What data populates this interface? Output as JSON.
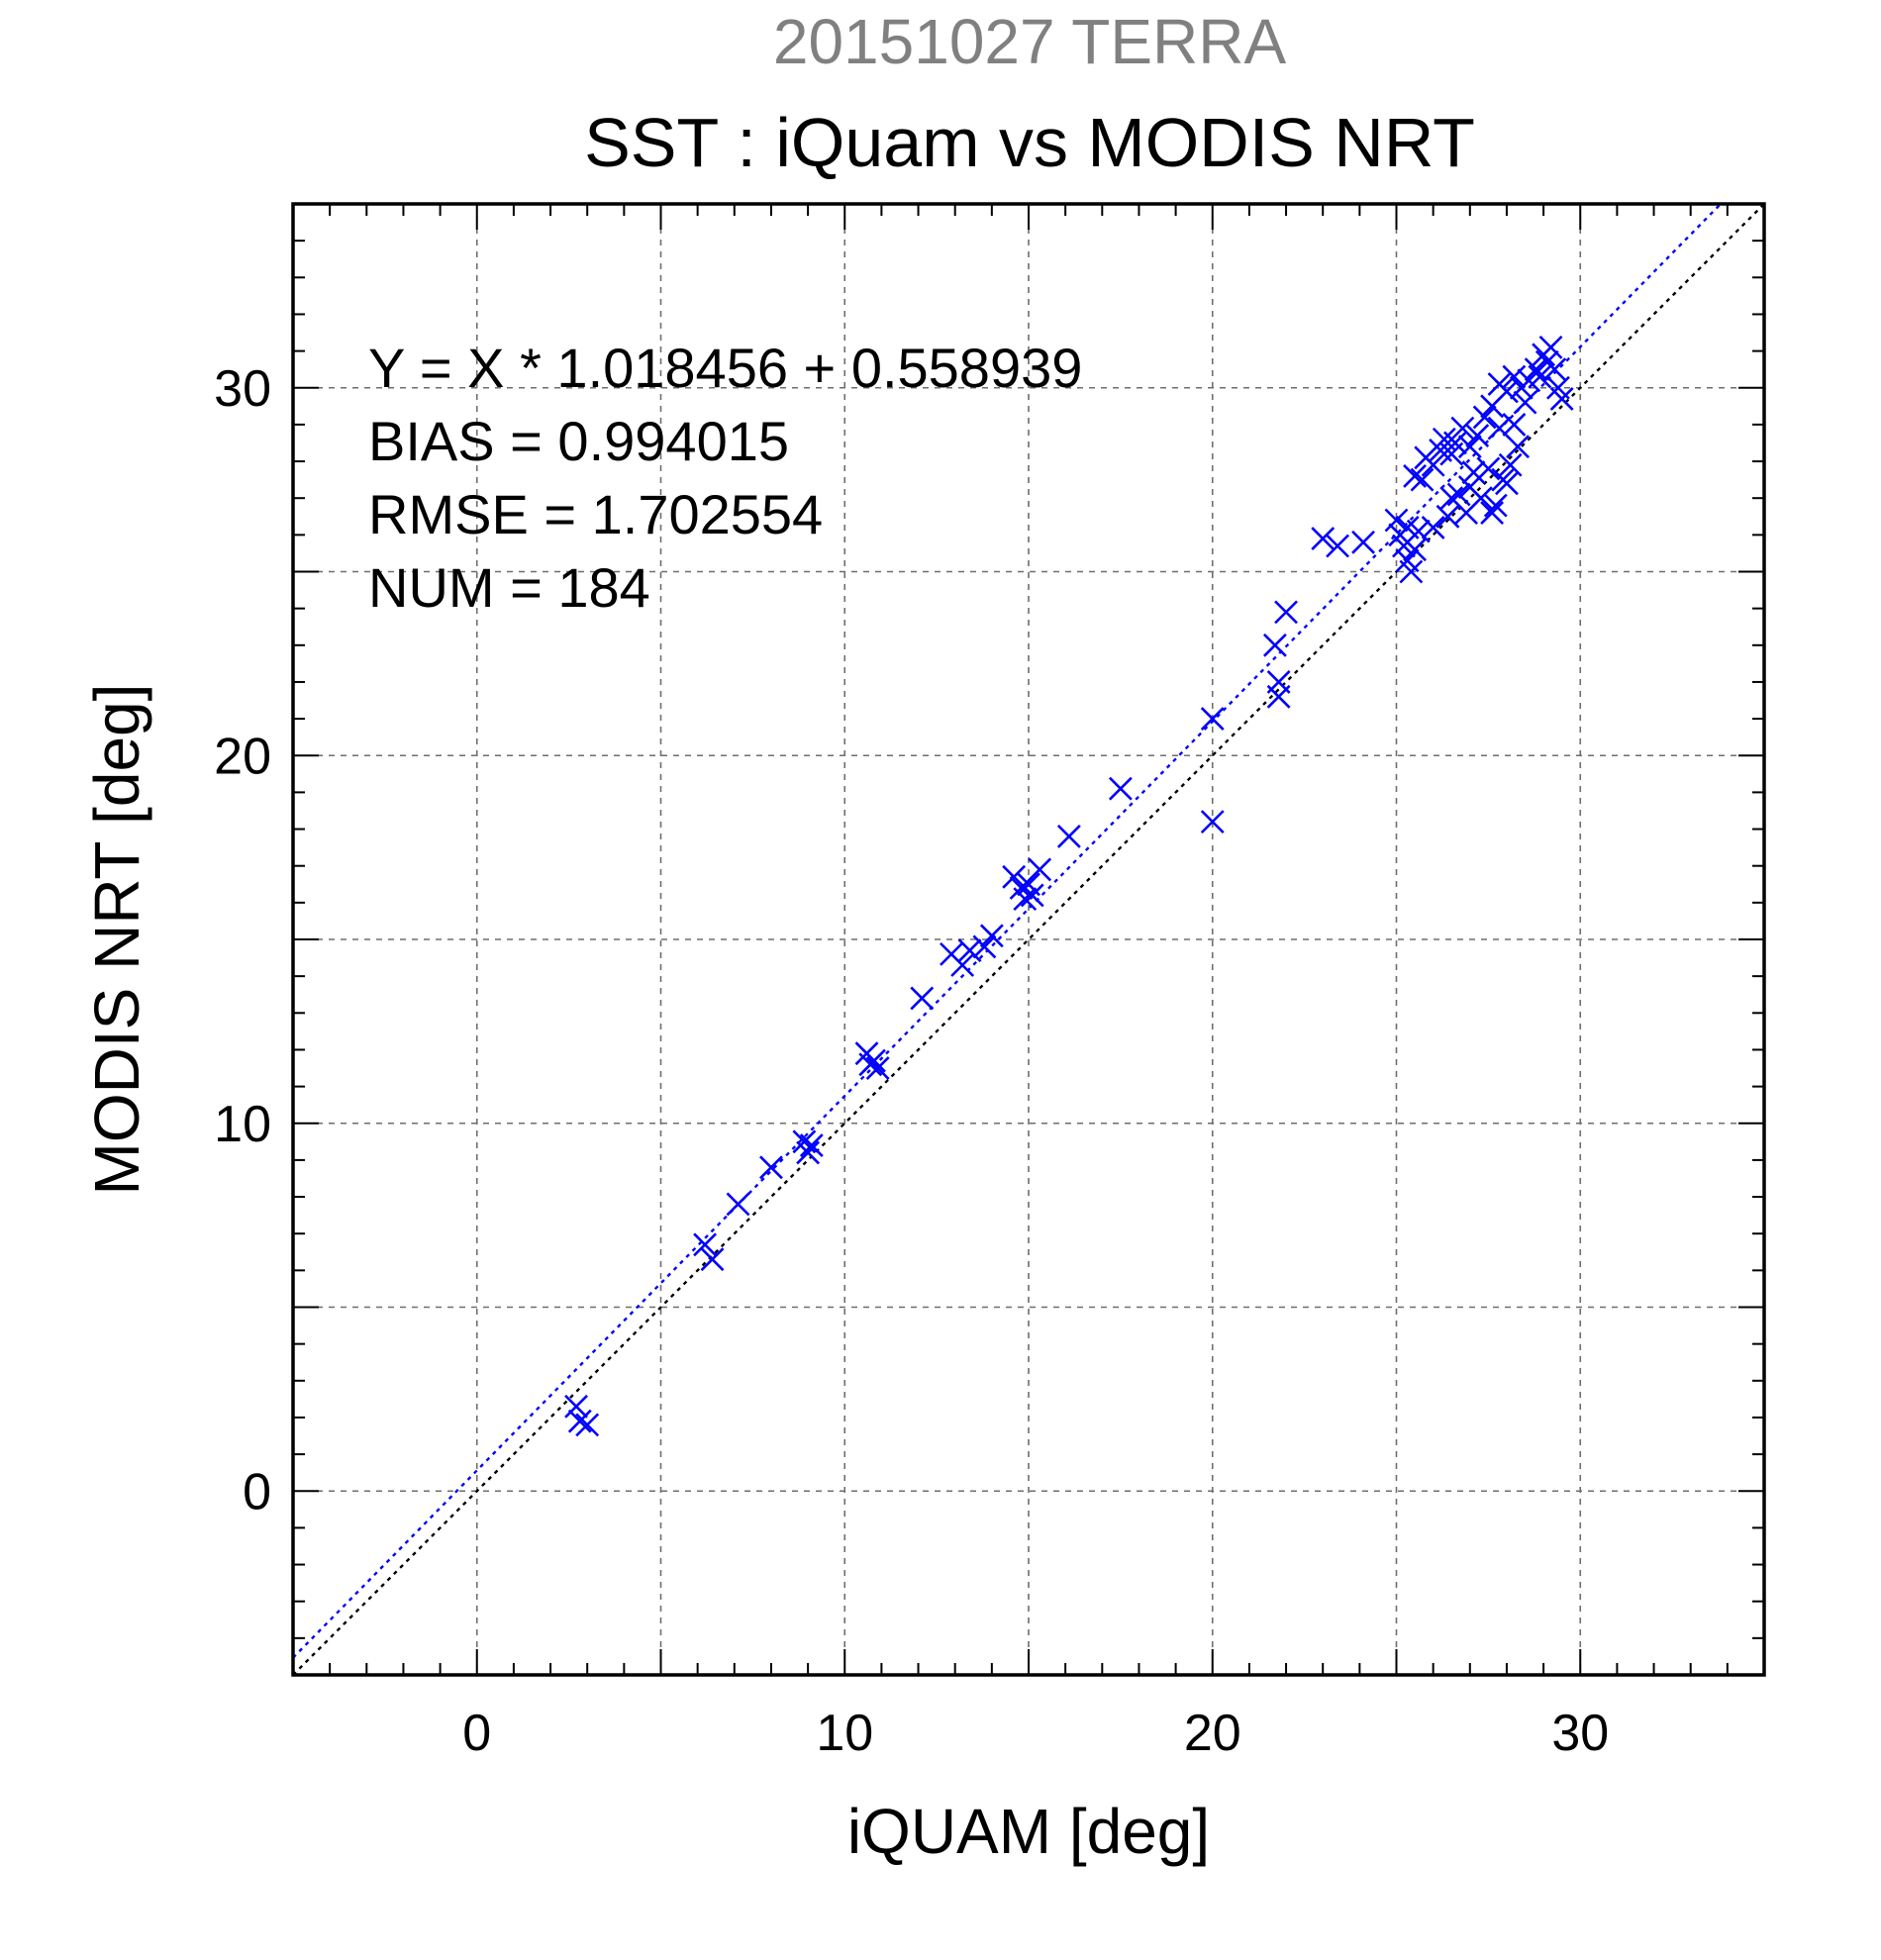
{
  "chart_data": {
    "type": "scatter",
    "title": "SST : iQuam vs MODIS NRT",
    "subtitle": "20151027 TERRA",
    "xlabel": "iQUAM [deg]",
    "ylabel": "MODIS NRT [deg]",
    "xlim": [
      -5,
      35
    ],
    "ylim": [
      -5,
      35
    ],
    "x_ticks": [
      0,
      10,
      20,
      30
    ],
    "y_ticks": [
      0,
      10,
      20,
      30
    ],
    "grid": true,
    "marker": "x",
    "colors": {
      "points": "#0000ff",
      "fit_line": "#0000ff",
      "reference_line": "#000000"
    },
    "fit": {
      "slope": 1.018456,
      "intercept": 0.558939
    },
    "stats": [
      "Y = X * 1.018456 + 0.558939",
      "BIAS = 0.994015",
      "RMSE = 1.702554",
      "NUM = 184"
    ],
    "series": [
      {
        "points": [
          [
            2.7,
            2.3
          ],
          [
            2.8,
            1.9
          ],
          [
            3.0,
            1.8
          ],
          [
            6.2,
            6.7
          ],
          [
            6.4,
            6.3
          ],
          [
            7.1,
            7.8
          ],
          [
            8.0,
            8.8
          ],
          [
            8.9,
            9.5
          ],
          [
            9.0,
            9.2
          ],
          [
            9.1,
            9.4
          ],
          [
            10.6,
            11.9
          ],
          [
            10.7,
            11.6
          ],
          [
            10.8,
            11.7
          ],
          [
            10.9,
            11.5
          ],
          [
            12.1,
            13.4
          ],
          [
            12.9,
            14.6
          ],
          [
            13.2,
            14.3
          ],
          [
            13.4,
            14.7
          ],
          [
            13.8,
            14.8
          ],
          [
            14.0,
            15.1
          ],
          [
            14.6,
            16.7
          ],
          [
            14.8,
            16.4
          ],
          [
            14.9,
            16.1
          ],
          [
            15.0,
            16.5
          ],
          [
            15.1,
            16.2
          ],
          [
            15.3,
            16.9
          ],
          [
            16.1,
            17.8
          ],
          [
            17.5,
            19.1
          ],
          [
            20.0,
            21.0
          ],
          [
            20.0,
            18.2
          ],
          [
            21.7,
            23.0
          ],
          [
            21.8,
            22.0
          ],
          [
            21.8,
            21.6
          ],
          [
            22.0,
            23.9
          ],
          [
            23.0,
            25.9
          ],
          [
            23.4,
            25.7
          ],
          [
            24.1,
            25.8
          ],
          [
            25.0,
            26.4
          ],
          [
            25.1,
            26.0
          ],
          [
            25.2,
            25.7
          ],
          [
            25.3,
            25.3
          ],
          [
            25.3,
            26.2
          ],
          [
            25.5,
            25.6
          ],
          [
            25.6,
            26.1
          ],
          [
            25.4,
            25.0
          ],
          [
            25.5,
            27.6
          ],
          [
            25.7,
            27.5
          ],
          [
            25.8,
            28.1
          ],
          [
            26.0,
            27.9
          ],
          [
            26.2,
            28.3
          ],
          [
            26.3,
            28.6
          ],
          [
            26.5,
            28.2
          ],
          [
            26.6,
            28.5
          ],
          [
            26.8,
            28.9
          ],
          [
            27.0,
            28.4
          ],
          [
            27.2,
            28.7
          ],
          [
            27.4,
            29.2
          ],
          [
            27.6,
            29.5
          ],
          [
            27.8,
            30.1
          ],
          [
            28.0,
            29.9
          ],
          [
            28.2,
            30.3
          ],
          [
            28.4,
            30.0
          ],
          [
            28.6,
            30.2
          ],
          [
            28.8,
            30.5
          ],
          [
            29.0,
            30.9
          ],
          [
            29.2,
            31.1
          ],
          [
            29.3,
            30.5
          ],
          [
            29.4,
            30.0
          ],
          [
            29.5,
            29.7
          ],
          [
            27.0,
            27.3
          ],
          [
            27.3,
            27.0
          ],
          [
            27.5,
            27.8
          ],
          [
            27.7,
            26.8
          ],
          [
            27.9,
            27.5
          ],
          [
            28.1,
            27.9
          ],
          [
            28.3,
            28.4
          ],
          [
            28.2,
            29.0
          ],
          [
            26.9,
            26.6
          ],
          [
            26.4,
            26.5
          ],
          [
            26.0,
            26.2
          ],
          [
            27.6,
            26.6
          ],
          [
            28.0,
            27.4
          ],
          [
            26.7,
            27.1
          ],
          [
            27.1,
            27.7
          ],
          [
            28.5,
            29.6
          ],
          [
            28.9,
            30.3
          ],
          [
            29.1,
            30.7
          ],
          [
            26.5,
            27.0
          ],
          [
            27.8,
            28.9
          ]
        ]
      }
    ]
  }
}
